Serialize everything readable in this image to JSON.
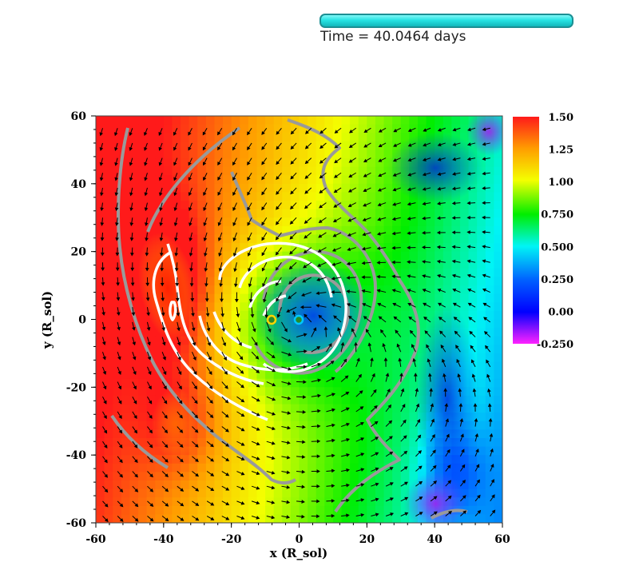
{
  "time_label": "Time = 40.0464 days",
  "colorbar": {
    "ticks": [
      "1.50",
      "1.25",
      "1.00",
      "0.750",
      "0.500",
      "0.250",
      "0.00",
      "-0.250"
    ],
    "colors": [
      "#ff1a1a",
      "#ff9d00",
      "#f4ff00",
      "#00ee00",
      "#00f5f5",
      "#0060ff",
      "#0000ff",
      "#ff22ff"
    ]
  },
  "chart_data": {
    "type": "heatmap",
    "title": "",
    "xlabel": "x (R_sol)",
    "ylabel": "y (R_sol)",
    "xlim": [
      -60,
      60
    ],
    "ylim": [
      -60,
      60
    ],
    "x_ticks": [
      -60,
      -40,
      -20,
      0,
      20,
      40,
      60
    ],
    "y_ticks": [
      60,
      40,
      20,
      0,
      -20,
      -40,
      -60
    ],
    "x_tick_labels": [
      "-60",
      "-40",
      "-20",
      "0",
      "20",
      "40",
      "60"
    ],
    "y_tick_labels": [
      "60",
      "40",
      "20",
      "0",
      "-20",
      "-40",
      "-60"
    ],
    "colorbar_range": [
      -0.25,
      1.5
    ],
    "overlays": [
      "velocity vector field (black arrows)",
      "white contours",
      "grey contours"
    ],
    "point_sources": [
      {
        "x": -8,
        "y": 0
      },
      {
        "x": 0,
        "y": 0
      }
    ]
  }
}
